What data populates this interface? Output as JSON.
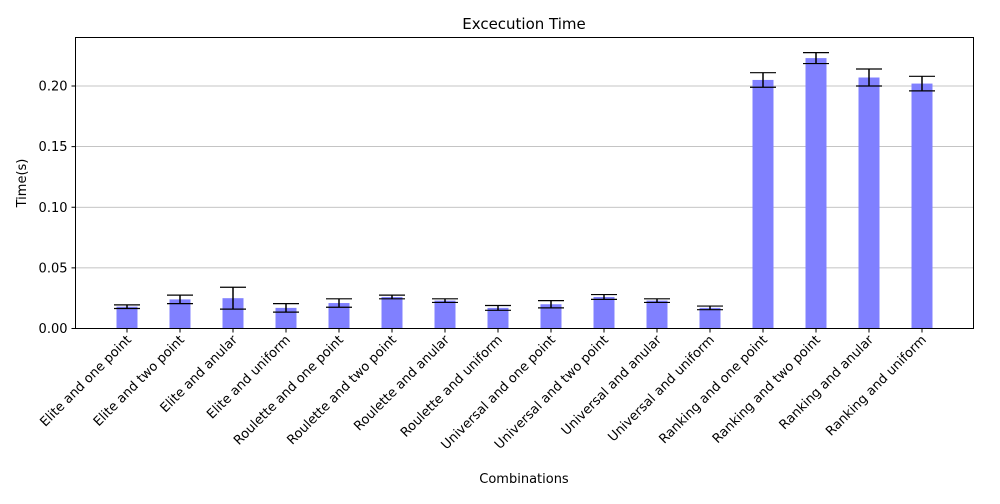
{
  "chart_data": {
    "type": "bar",
    "title": "Excecution Time",
    "xlabel": "Combinations",
    "ylabel": "Time(s)",
    "ylim": [
      0,
      0.24
    ],
    "yticks": [
      "0.00",
      "0.05",
      "0.10",
      "0.15",
      "0.20"
    ],
    "grid": "horizontal",
    "bar_color": "#8080ff",
    "categories": [
      "Elite and one point",
      "Elite and two point",
      "Elite and anular",
      "Elite and uniform",
      "Roulette and one point",
      "Roulette and two point",
      "Roulette and anular",
      "Roulette and uniform",
      "Universal and one point",
      "Universal and two point",
      "Universal and anular",
      "Universal and uniform",
      "Ranking and one point",
      "Ranking and two point",
      "Ranking and anular",
      "Ranking and uniform"
    ],
    "values": [
      0.018,
      0.024,
      0.025,
      0.017,
      0.021,
      0.026,
      0.023,
      0.017,
      0.02,
      0.026,
      0.023,
      0.017,
      0.205,
      0.223,
      0.207,
      0.202
    ],
    "errors": [
      0.0015,
      0.0035,
      0.009,
      0.0035,
      0.0035,
      0.0015,
      0.0015,
      0.002,
      0.003,
      0.002,
      0.0015,
      0.0015,
      0.006,
      0.0045,
      0.007,
      0.006
    ]
  }
}
